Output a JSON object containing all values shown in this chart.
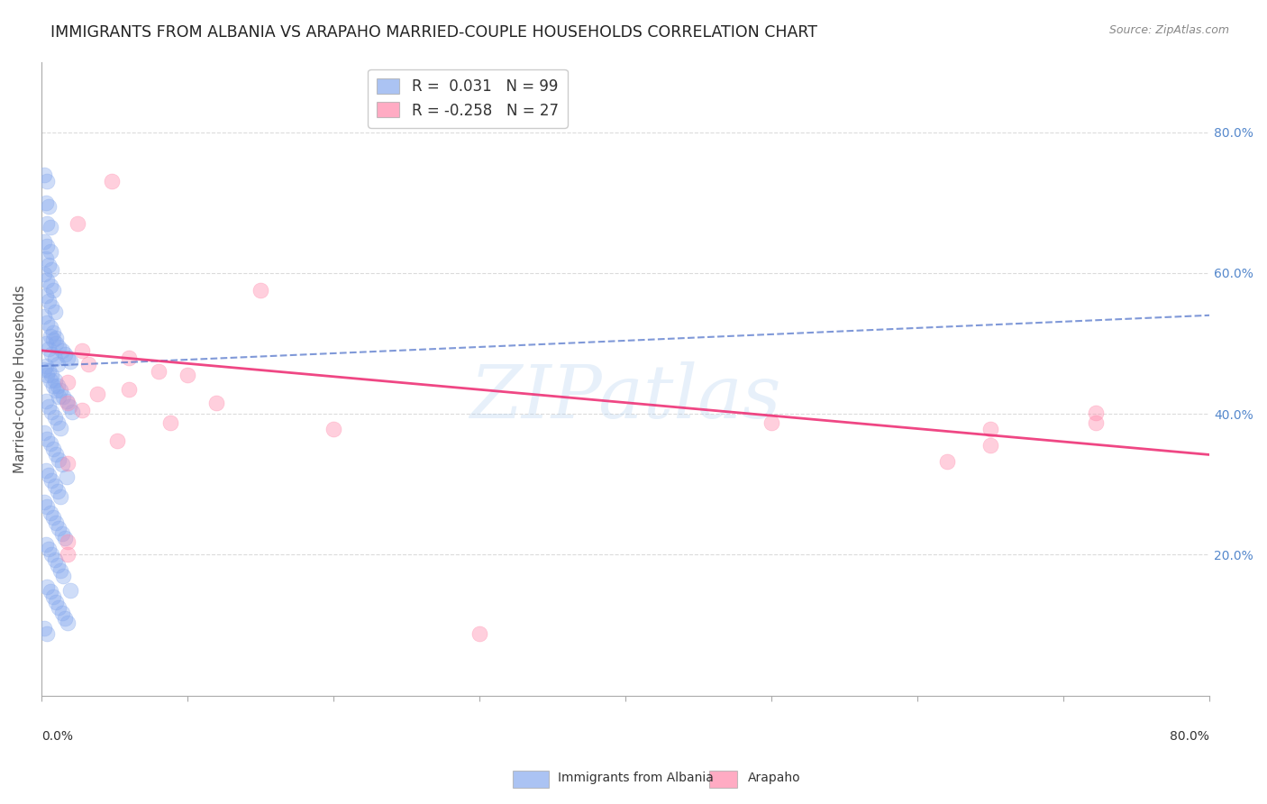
{
  "title": "IMMIGRANTS FROM ALBANIA VS ARAPAHO MARRIED-COUPLE HOUSEHOLDS CORRELATION CHART",
  "source": "Source: ZipAtlas.com",
  "ylabel": "Married-couple Households",
  "xlim": [
    0.0,
    0.8
  ],
  "ylim": [
    0.0,
    0.9
  ],
  "xtick_positions": [
    0.0,
    0.1,
    0.2,
    0.3,
    0.4,
    0.5,
    0.6,
    0.7,
    0.8
  ],
  "ytick_positions": [
    0.2,
    0.4,
    0.6,
    0.8
  ],
  "ytick_labels": [
    "20.0%",
    "40.0%",
    "60.0%",
    "80.0%"
  ],
  "grid_color": "#cccccc",
  "background_color": "#ffffff",
  "legend_r1": "R =  0.031",
  "legend_n1": "N = 99",
  "legend_r2": "R = -0.258",
  "legend_n2": "N = 27",
  "blue_color": "#88aaee",
  "pink_color": "#ff88aa",
  "blue_line_color": "#5577cc",
  "pink_line_color": "#ee3377",
  "blue_label_color": "#5588cc",
  "watermark": "ZIPatlas",
  "blue_dots": [
    [
      0.002,
      0.74
    ],
    [
      0.004,
      0.73
    ],
    [
      0.003,
      0.7
    ],
    [
      0.005,
      0.695
    ],
    [
      0.004,
      0.67
    ],
    [
      0.006,
      0.665
    ],
    [
      0.002,
      0.645
    ],
    [
      0.004,
      0.638
    ],
    [
      0.006,
      0.63
    ],
    [
      0.003,
      0.62
    ],
    [
      0.005,
      0.612
    ],
    [
      0.007,
      0.605
    ],
    [
      0.002,
      0.598
    ],
    [
      0.004,
      0.59
    ],
    [
      0.006,
      0.582
    ],
    [
      0.008,
      0.575
    ],
    [
      0.003,
      0.568
    ],
    [
      0.005,
      0.56
    ],
    [
      0.007,
      0.553
    ],
    [
      0.009,
      0.545
    ],
    [
      0.002,
      0.538
    ],
    [
      0.004,
      0.53
    ],
    [
      0.006,
      0.523
    ],
    [
      0.008,
      0.515
    ],
    [
      0.01,
      0.508
    ],
    [
      0.003,
      0.5
    ],
    [
      0.005,
      0.493
    ],
    [
      0.007,
      0.485
    ],
    [
      0.009,
      0.478
    ],
    [
      0.011,
      0.47
    ],
    [
      0.002,
      0.463
    ],
    [
      0.004,
      0.455
    ],
    [
      0.006,
      0.448
    ],
    [
      0.008,
      0.44
    ],
    [
      0.01,
      0.433
    ],
    [
      0.012,
      0.425
    ],
    [
      0.003,
      0.418
    ],
    [
      0.005,
      0.41
    ],
    [
      0.007,
      0.403
    ],
    [
      0.009,
      0.395
    ],
    [
      0.011,
      0.388
    ],
    [
      0.013,
      0.38
    ],
    [
      0.002,
      0.373
    ],
    [
      0.004,
      0.365
    ],
    [
      0.006,
      0.358
    ],
    [
      0.008,
      0.35
    ],
    [
      0.01,
      0.343
    ],
    [
      0.012,
      0.335
    ],
    [
      0.014,
      0.328
    ],
    [
      0.003,
      0.32
    ],
    [
      0.005,
      0.313
    ],
    [
      0.007,
      0.305
    ],
    [
      0.009,
      0.298
    ],
    [
      0.011,
      0.29
    ],
    [
      0.013,
      0.283
    ],
    [
      0.002,
      0.275
    ],
    [
      0.004,
      0.268
    ],
    [
      0.006,
      0.26
    ],
    [
      0.008,
      0.253
    ],
    [
      0.01,
      0.245
    ],
    [
      0.012,
      0.238
    ],
    [
      0.014,
      0.23
    ],
    [
      0.016,
      0.223
    ],
    [
      0.003,
      0.215
    ],
    [
      0.005,
      0.208
    ],
    [
      0.007,
      0.2
    ],
    [
      0.009,
      0.193
    ],
    [
      0.011,
      0.185
    ],
    [
      0.013,
      0.178
    ],
    [
      0.015,
      0.17
    ],
    [
      0.017,
      0.31
    ],
    [
      0.004,
      0.155
    ],
    [
      0.006,
      0.148
    ],
    [
      0.008,
      0.14
    ],
    [
      0.01,
      0.133
    ],
    [
      0.012,
      0.125
    ],
    [
      0.014,
      0.118
    ],
    [
      0.016,
      0.11
    ],
    [
      0.018,
      0.103
    ],
    [
      0.02,
      0.15
    ],
    [
      0.002,
      0.095
    ],
    [
      0.004,
      0.088
    ],
    [
      0.006,
      0.51
    ],
    [
      0.008,
      0.505
    ],
    [
      0.01,
      0.5
    ],
    [
      0.012,
      0.495
    ],
    [
      0.014,
      0.49
    ],
    [
      0.016,
      0.485
    ],
    [
      0.018,
      0.48
    ],
    [
      0.02,
      0.475
    ],
    [
      0.003,
      0.468
    ],
    [
      0.005,
      0.462
    ],
    [
      0.007,
      0.455
    ],
    [
      0.009,
      0.448
    ],
    [
      0.011,
      0.44
    ],
    [
      0.013,
      0.433
    ],
    [
      0.015,
      0.425
    ],
    [
      0.017,
      0.418
    ],
    [
      0.019,
      0.41
    ],
    [
      0.021,
      0.403
    ]
  ],
  "pink_dots": [
    [
      0.048,
      0.73
    ],
    [
      0.025,
      0.67
    ],
    [
      0.15,
      0.575
    ],
    [
      0.028,
      0.49
    ],
    [
      0.06,
      0.48
    ],
    [
      0.032,
      0.47
    ],
    [
      0.08,
      0.46
    ],
    [
      0.1,
      0.455
    ],
    [
      0.018,
      0.445
    ],
    [
      0.06,
      0.435
    ],
    [
      0.038,
      0.428
    ],
    [
      0.018,
      0.415
    ],
    [
      0.028,
      0.405
    ],
    [
      0.12,
      0.415
    ],
    [
      0.088,
      0.388
    ],
    [
      0.2,
      0.378
    ],
    [
      0.052,
      0.362
    ],
    [
      0.5,
      0.388
    ],
    [
      0.65,
      0.378
    ],
    [
      0.722,
      0.388
    ],
    [
      0.018,
      0.33
    ],
    [
      0.018,
      0.218
    ],
    [
      0.3,
      0.088
    ],
    [
      0.018,
      0.2
    ],
    [
      0.722,
      0.402
    ],
    [
      0.65,
      0.355
    ],
    [
      0.62,
      0.332
    ]
  ],
  "blue_trend_x": [
    0.0,
    0.8
  ],
  "blue_trend_y": [
    0.468,
    0.54
  ],
  "pink_trend_x": [
    0.0,
    0.8
  ],
  "pink_trend_y": [
    0.49,
    0.342
  ],
  "title_fontsize": 12.5,
  "axis_label_fontsize": 11,
  "tick_fontsize": 10,
  "legend_fontsize": 12,
  "dot_size": 150,
  "dot_alpha": 0.4
}
